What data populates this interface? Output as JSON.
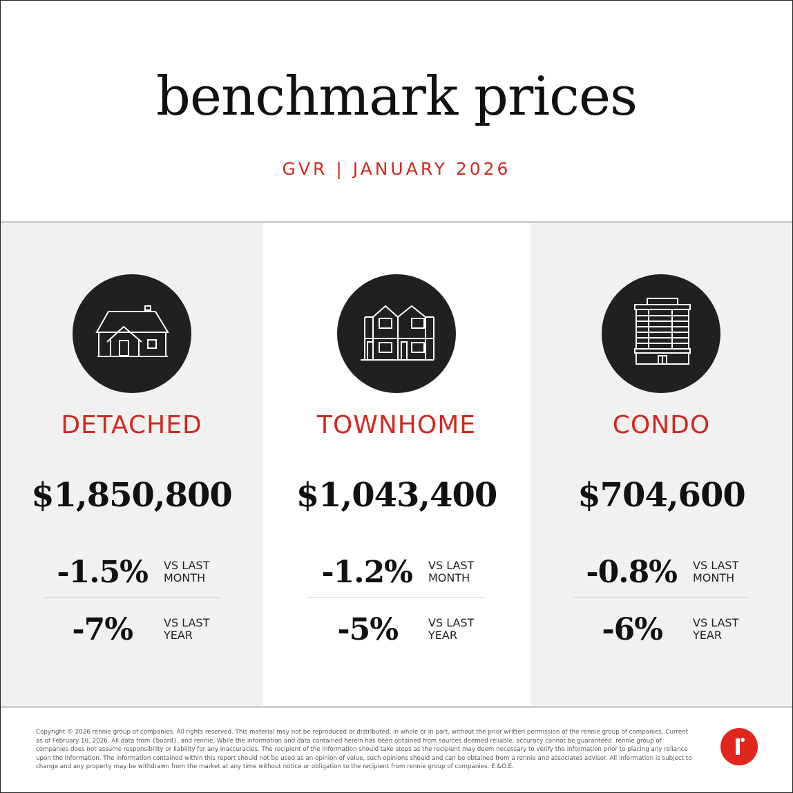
{
  "header": {
    "title": "benchmark prices",
    "subtitle": "GVR | JANUARY 2026"
  },
  "colors": {
    "accent": "#d2291f",
    "icon_circle": "#221f1f",
    "panel_gray": "#f1f1f1",
    "logo": "#e1261c"
  },
  "columns": [
    {
      "icon": "detached-house-icon",
      "type": "DETACHED",
      "price": "$1,850,800",
      "month_change": "-1.5%",
      "month_label_1": "VS LAST",
      "month_label_2": "MONTH",
      "year_change": "-7%",
      "year_label_1": "VS LAST",
      "year_label_2": "YEAR"
    },
    {
      "icon": "townhome-icon",
      "type": "TOWNHOME",
      "price": "$1,043,400",
      "month_change": "-1.2%",
      "month_label_1": "VS LAST",
      "month_label_2": "MONTH",
      "year_change": "-5%",
      "year_label_1": "VS LAST",
      "year_label_2": "YEAR"
    },
    {
      "icon": "condo-building-icon",
      "type": "CONDO",
      "price": "$704,600",
      "month_change": "-0.8%",
      "month_label_1": "VS LAST",
      "month_label_2": "MONTH",
      "year_change": "-6%",
      "year_label_1": "VS LAST",
      "year_label_2": "YEAR"
    }
  ],
  "footer": {
    "disclaimer": "Copyright © 2026 rennie group of companies. All rights reserved. This material may not be reproduced or distributed, in whole or in part, without the prior written permission of the rennie group of companies. Current as of February 10, 2026. All data from {board}, and rennie. While the information and data contained herein has been obtained from sources deemed reliable, accuracy cannot be guaranteed. rennie group of companies does not assume responsibility or liability for any inaccuracies. The recipient of the information should take steps as the recipient may deem necessary to verify the information prior to placing any reliance upon the information. The information contained within this report should not be used as an opinion of value, such opinions should and can be obtained from a rennie and associates advisor. All information is subject to change and any property may be withdrawn from the market at any time without notice or obligation to the recipient from rennie group of companies. E.&O.E.",
    "logo": "rennie-logo"
  }
}
